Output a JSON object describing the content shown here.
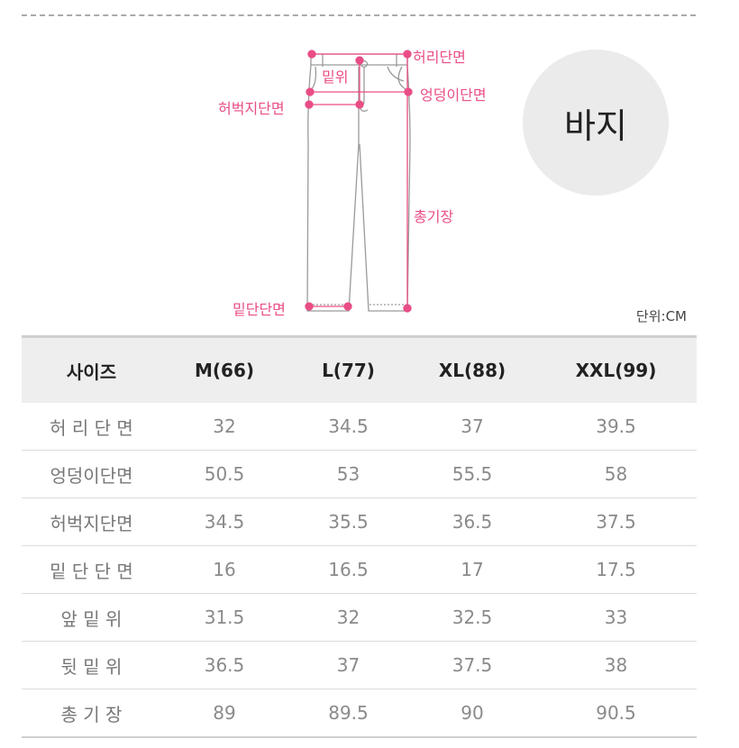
{
  "product_label": "바지",
  "unit": "단위:CM",
  "diagram_labels": {
    "waist": "허리단면",
    "rise": "밑위",
    "hip": "엉덩이단면",
    "thigh": "허벅지단면",
    "length": "총기장",
    "hem": "밑단단면"
  },
  "table": {
    "headers": [
      "사이즈",
      "M(66)",
      "L(77)",
      "XL(88)",
      "XXL(99)"
    ],
    "rows": [
      {
        "label": "허 리 단 면",
        "values": [
          "32",
          "34.5",
          "37",
          "39.5"
        ]
      },
      {
        "label": "엉덩이단면",
        "values": [
          "50.5",
          "53",
          "55.5",
          "58"
        ]
      },
      {
        "label": "허벅지단면",
        "values": [
          "34.5",
          "35.5",
          "36.5",
          "37.5"
        ]
      },
      {
        "label": "밑 단 단 면",
        "values": [
          "16",
          "16.5",
          "17",
          "17.5"
        ]
      },
      {
        "label": "앞  밑  위",
        "values": [
          "31.5",
          "32",
          "32.5",
          "33"
        ]
      },
      {
        "label": "뒷  밑  위",
        "values": [
          "36.5",
          "37",
          "37.5",
          "38"
        ]
      },
      {
        "label": "총  기  장",
        "values": [
          "89",
          "89.5",
          "90",
          "90.5"
        ]
      }
    ]
  },
  "colors": {
    "accent": "#e94d86",
    "header_bg": "#eeeeee",
    "circle_bg": "#ebebeb"
  }
}
